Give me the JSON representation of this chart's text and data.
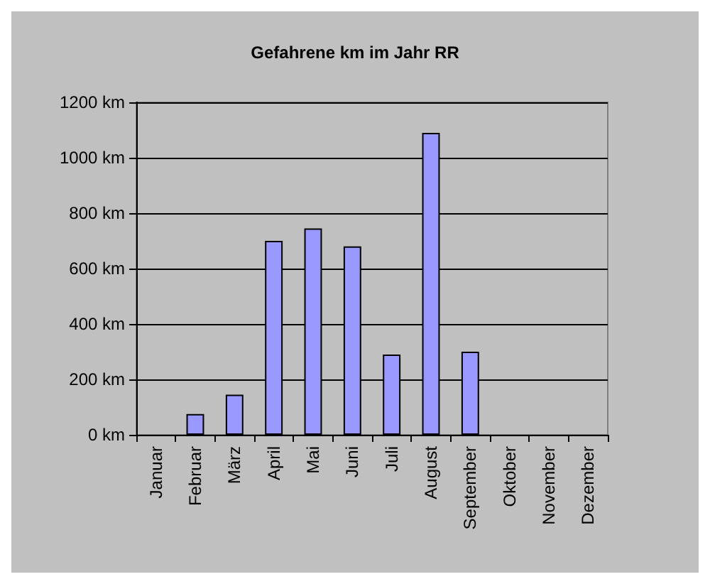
{
  "chart_data": {
    "type": "bar",
    "title": "Gefahrene km im Jahr RR",
    "categories": [
      "Januar",
      "Februar",
      "März",
      "April",
      "Mai",
      "Juni",
      "Juli",
      "August",
      "September",
      "Oktober",
      "November",
      "Dezember"
    ],
    "values": [
      0,
      75,
      145,
      700,
      745,
      680,
      290,
      1090,
      300,
      0,
      0,
      0
    ],
    "color": "#9999ff",
    "ylim": [
      0,
      1200
    ],
    "yticks": [
      {
        "value": 0,
        "label": "0 km"
      },
      {
        "value": 200,
        "label": "200 km"
      },
      {
        "value": 400,
        "label": "400 km"
      },
      {
        "value": 600,
        "label": "600 km"
      },
      {
        "value": 800,
        "label": "800 km"
      },
      {
        "value": 1000,
        "label": "1000 km"
      },
      {
        "value": 1200,
        "label": "1200 km"
      }
    ],
    "grid": "y"
  }
}
